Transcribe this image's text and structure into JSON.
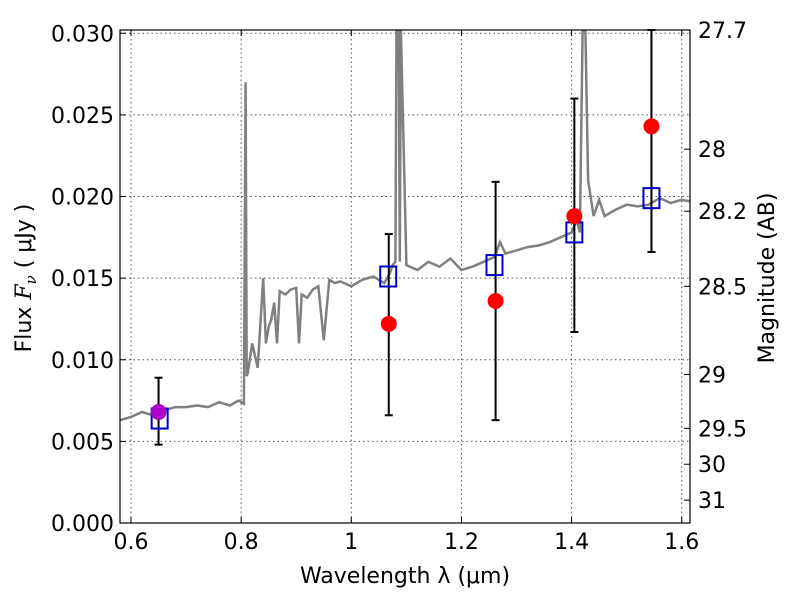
{
  "chart_data": {
    "type": "scatter",
    "xlabel": "Wavelength  λ (μm)",
    "ylabel_prefix": "Flux  ",
    "ylabel_symbol": "F",
    "ylabel_sub": "ν",
    "ylabel_unit": "  ( μJy )",
    "y2label": "Magnitude (AB)",
    "xlim": [
      0.58,
      1.615
    ],
    "ylim": [
      0.0,
      0.0302
    ],
    "xticks": [
      0.6,
      0.8,
      1.0,
      1.2,
      1.4,
      1.6
    ],
    "xtick_labels": [
      "0.6",
      "0.8",
      "1",
      "1.2",
      "1.4",
      "1.6"
    ],
    "yticks": [
      0.0,
      0.005,
      0.01,
      0.015,
      0.02,
      0.025,
      0.03
    ],
    "ytick_labels": [
      "0.000",
      "0.005",
      "0.010",
      "0.015",
      "0.020",
      "0.025",
      "0.030"
    ],
    "y2ticks": [
      {
        "label": "27.7",
        "flux": 0.0302
      },
      {
        "label": "28",
        "flux": 0.0229
      },
      {
        "label": "28.2",
        "flux": 0.0191
      },
      {
        "label": "28.5",
        "flux": 0.0145
      },
      {
        "label": "29",
        "flux": 0.0091
      },
      {
        "label": "29.5",
        "flux": 0.0058
      },
      {
        "label": "30",
        "flux": 0.0036
      },
      {
        "label": "31",
        "flux": 0.0014
      }
    ],
    "grid": true,
    "colors": {
      "model": "#808080",
      "observed": "#ff0000",
      "synthetic": "#0000cc",
      "overlap": "#aa00cc",
      "errorbar": "#000000"
    },
    "series": [
      {
        "style": "line",
        "x": [
          0.58,
          0.6,
          0.62,
          0.64,
          0.66,
          0.68,
          0.7,
          0.72,
          0.74,
          0.76,
          0.78,
          0.795,
          0.805,
          0.808,
          0.81,
          0.812,
          0.82,
          0.83,
          0.84,
          0.845,
          0.85,
          0.855,
          0.86,
          0.865,
          0.87,
          0.88,
          0.89,
          0.9,
          0.905,
          0.91,
          0.92,
          0.93,
          0.94,
          0.95,
          0.96,
          0.97,
          0.98,
          1.0,
          1.02,
          1.04,
          1.06,
          1.07,
          1.075,
          1.08,
          1.082,
          1.086,
          1.088,
          1.09,
          1.1,
          1.12,
          1.14,
          1.16,
          1.18,
          1.2,
          1.22,
          1.24,
          1.26,
          1.27,
          1.28,
          1.3,
          1.32,
          1.34,
          1.36,
          1.38,
          1.4,
          1.405,
          1.41,
          1.415,
          1.42,
          1.425,
          1.43,
          1.44,
          1.45,
          1.46,
          1.48,
          1.5,
          1.52,
          1.54,
          1.56,
          1.58,
          1.6,
          1.615
        ],
        "y": [
          0.0063,
          0.0065,
          0.0068,
          0.0066,
          0.0069,
          0.0071,
          0.0071,
          0.0072,
          0.0071,
          0.0074,
          0.0072,
          0.0075,
          0.0073,
          0.027,
          0.009,
          0.0092,
          0.011,
          0.0095,
          0.015,
          0.011,
          0.012,
          0.0125,
          0.0135,
          0.011,
          0.0142,
          0.014,
          0.0143,
          0.0144,
          0.011,
          0.014,
          0.0138,
          0.0143,
          0.0145,
          0.0112,
          0.0149,
          0.0147,
          0.0148,
          0.0145,
          0.0149,
          0.0151,
          0.0147,
          0.0153,
          0.0158,
          0.016,
          0.0302,
          0.0302,
          0.016,
          0.0302,
          0.0158,
          0.0155,
          0.016,
          0.0157,
          0.0162,
          0.0155,
          0.0157,
          0.016,
          0.0163,
          0.0172,
          0.0165,
          0.0167,
          0.0169,
          0.017,
          0.0172,
          0.0175,
          0.0178,
          0.0182,
          0.0185,
          0.0178,
          0.0302,
          0.0302,
          0.021,
          0.0188,
          0.0198,
          0.0188,
          0.0192,
          0.0195,
          0.0194,
          0.0195,
          0.0199,
          0.0196,
          0.0198,
          0.0197
        ]
      },
      {
        "style": "markers",
        "marker": "circle",
        "x": [
          0.65,
          1.068,
          1.262,
          1.405,
          1.545
        ],
        "y": [
          0.0068,
          0.0122,
          0.0136,
          0.0188,
          0.0243
        ]
      },
      {
        "style": "markers",
        "marker": "square",
        "x": [
          0.652,
          1.067,
          1.26,
          1.405,
          1.545
        ],
        "y": [
          0.0064,
          0.0151,
          0.0158,
          0.0178,
          0.0199
        ]
      },
      {
        "style": "errorbars",
        "x": [
          0.65,
          1.068,
          1.262,
          1.405,
          1.545
        ],
        "y_low": [
          0.0048,
          0.0066,
          0.0063,
          0.0117,
          0.0166
        ],
        "y_high": [
          0.0089,
          0.0177,
          0.0209,
          0.026,
          0.0302
        ]
      }
    ]
  }
}
